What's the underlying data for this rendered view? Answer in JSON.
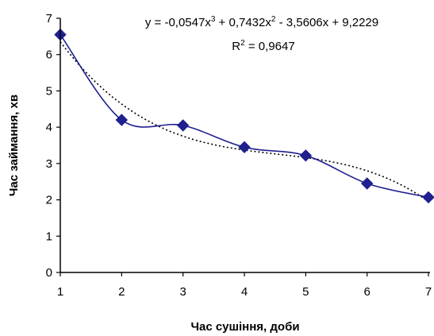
{
  "chart_data": {
    "type": "line",
    "xlabel": "Час сушіння, доби",
    "ylabel": "Час займання, хв",
    "xlim": [
      1,
      7
    ],
    "ylim": [
      0,
      7
    ],
    "x_ticks": [
      "1",
      "2",
      "3",
      "4",
      "5",
      "6",
      "7"
    ],
    "y_ticks": [
      "0",
      "1",
      "2",
      "3",
      "4",
      "5",
      "6",
      "7"
    ],
    "grid": false,
    "series": [
      {
        "style": "smoothed line with diamond markers",
        "color": "#1f1f8f",
        "x": [
          1,
          2,
          3,
          4,
          5,
          6,
          7
        ],
        "y": [
          6.55,
          4.2,
          4.05,
          3.45,
          3.22,
          2.45,
          2.07
        ]
      }
    ],
    "trendline": {
      "type": "polynomial-3",
      "style": "dotted",
      "color": "#000000",
      "coefficients": [
        -0.0547,
        0.7432,
        -3.5606,
        9.2229
      ],
      "equation_label": {
        "pre": "y = -0,0547x",
        "sup1": "3",
        "mid": " + 0,7432x",
        "sup2": "2",
        "post": " - 3,5606x + 9,2229"
      },
      "r2_label": {
        "pre": "R",
        "sup": "2",
        "post": " = 0,9647"
      }
    }
  }
}
